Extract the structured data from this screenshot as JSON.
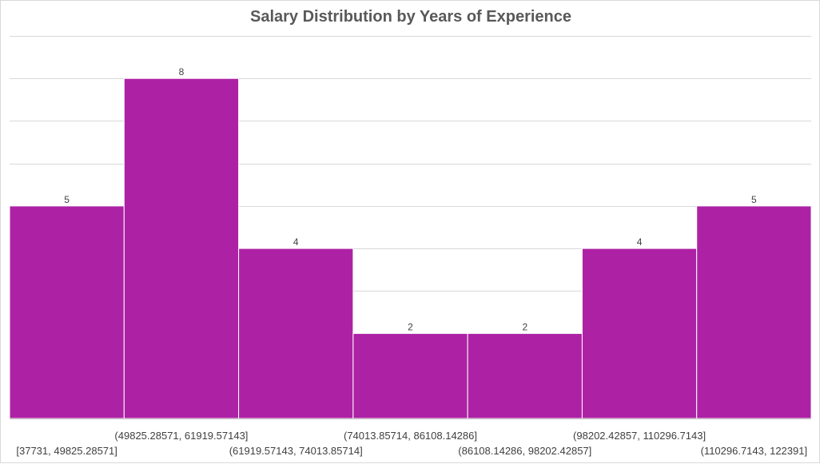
{
  "chart_data": {
    "type": "bar",
    "title": "Salary Distribution by Years of Experience",
    "xlabel": "",
    "ylabel": "",
    "categories": [
      "[37731, 49825.28571]",
      "(49825.28571, 61919.57143]",
      "(61919.57143, 74013.85714]",
      "(74013.85714, 86108.14286]",
      "(86108.14286, 98202.42857]",
      "(98202.42857, 110296.7143]",
      "(110296.7143, 122391]"
    ],
    "values": [
      5,
      8,
      4,
      2,
      2,
      4,
      5
    ],
    "ylim": [
      0,
      9
    ],
    "grid": true,
    "legend": "none",
    "colors": {
      "bar": "#AD22A4",
      "grid": "#D9D9D9",
      "text": "#404040",
      "title": "#595959"
    }
  }
}
